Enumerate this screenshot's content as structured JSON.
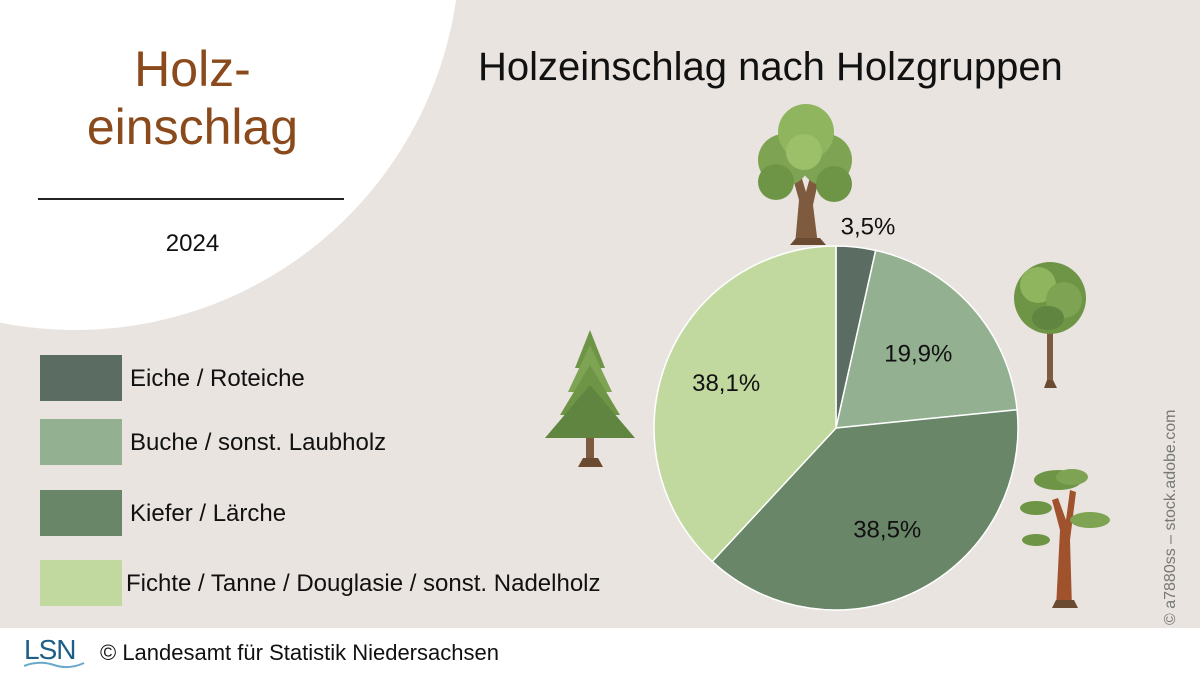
{
  "header": {
    "headline_line1": "Holz-",
    "headline_line2": "einschlag",
    "year": "2024"
  },
  "chart_data": {
    "type": "pie",
    "title": "Holzeinschlag nach Holzgruppen",
    "categories": [
      "Eiche / Roteiche",
      "Buche / sonst. Laubholz",
      "Kiefer / Lärche",
      "Fichte / Tanne / Douglasie / sonst. Nadelholz"
    ],
    "values": [
      3.5,
      19.9,
      38.5,
      38.1
    ],
    "value_labels": [
      "3,5%",
      "19,9%",
      "38,5%",
      "38,1%"
    ],
    "colors": [
      "#5b6d63",
      "#93b091",
      "#6a8669",
      "#c1d99f"
    ],
    "legend_position": "left"
  },
  "credits": {
    "image": "© a7880ss – stock.adobe.com"
  },
  "footer": {
    "logo": "LSN",
    "copyright": "© Landesamt für Statistik Niedersachsen"
  },
  "icons": {
    "tree_oak": "oak-tree-icon",
    "tree_deciduous": "deciduous-tree-icon",
    "tree_fir": "fir-tree-icon",
    "tree_pine": "pine-tree-icon",
    "logo_wave": "wave-icon"
  }
}
